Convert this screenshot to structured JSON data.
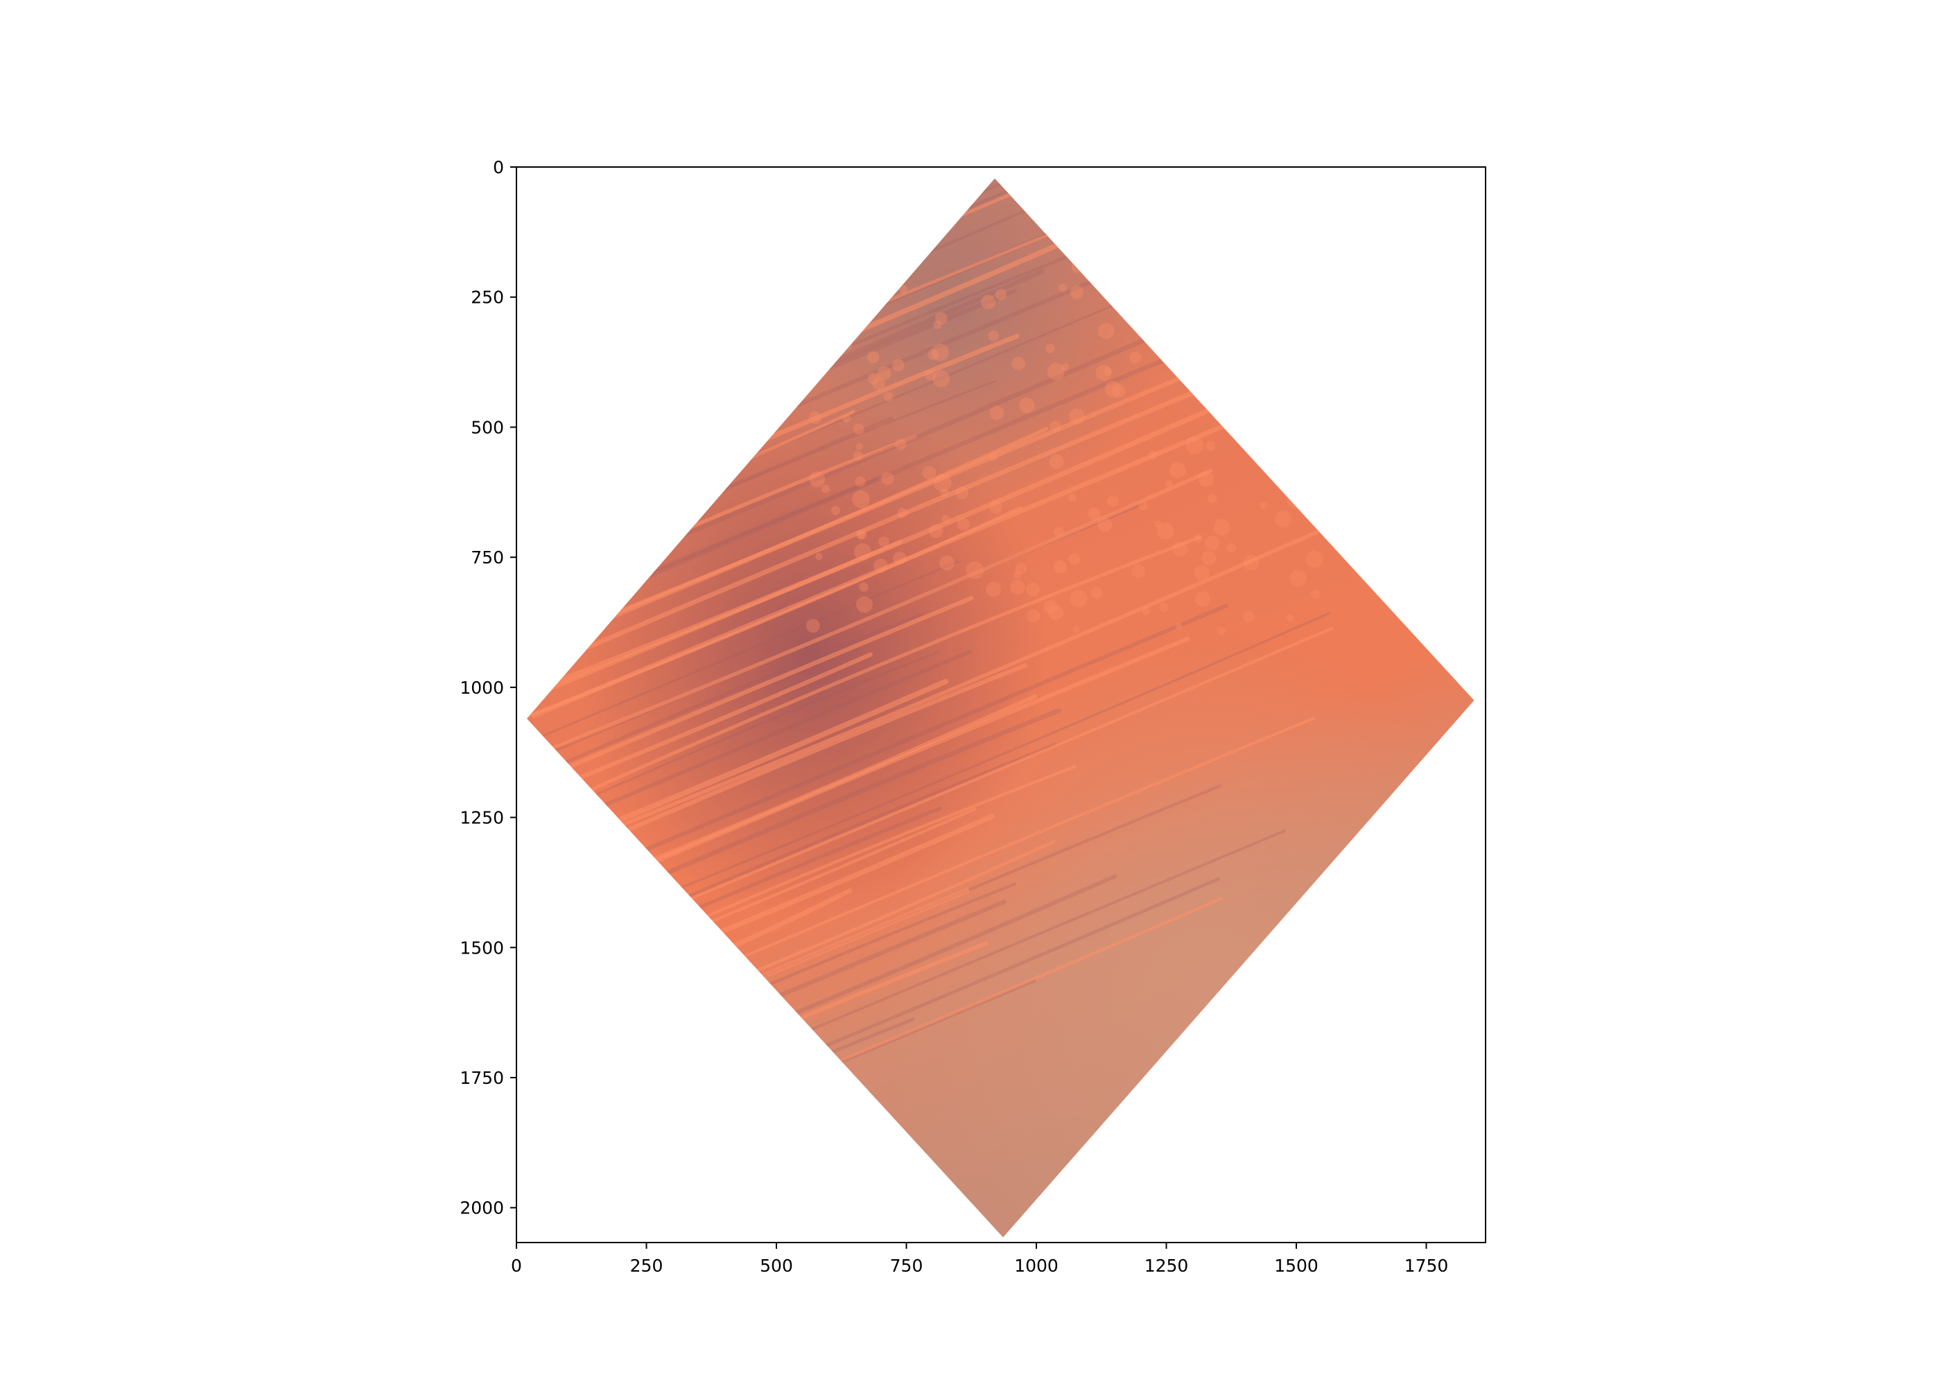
{
  "chart_data": {
    "type": "image",
    "title": "",
    "xlabel": "",
    "ylabel": "",
    "xlim": [
      0,
      1864
    ],
    "ylim": [
      2067,
      0
    ],
    "x_ticks": [
      0,
      250,
      500,
      750,
      1000,
      1250,
      1500,
      1750
    ],
    "y_ticks": [
      0,
      250,
      500,
      750,
      1000,
      1250,
      1500,
      1750,
      2000
    ],
    "x_tick_labels": [
      "0",
      "250",
      "500",
      "750",
      "1000",
      "1250",
      "1500",
      "1750"
    ],
    "y_tick_labels": [
      "0",
      "250",
      "500",
      "750",
      "1000",
      "1250",
      "1500",
      "1750",
      "2000"
    ],
    "image_corners": [
      {
        "name": "top",
        "x": 920,
        "y": 22
      },
      {
        "name": "right",
        "x": 1842,
        "y": 1025
      },
      {
        "name": "bottom",
        "x": 936,
        "y": 2057
      },
      {
        "name": "left",
        "x": 20,
        "y": 1060
      }
    ],
    "image_description_colors": {
      "dune_orange": "#ef7a55",
      "dune_highlight": "#ff9066",
      "shadow_purple": "#9e5a5f",
      "plain_tan": "#d48f73",
      "gray_mauve": "#b27a72"
    },
    "grid": false,
    "legend": "none"
  }
}
